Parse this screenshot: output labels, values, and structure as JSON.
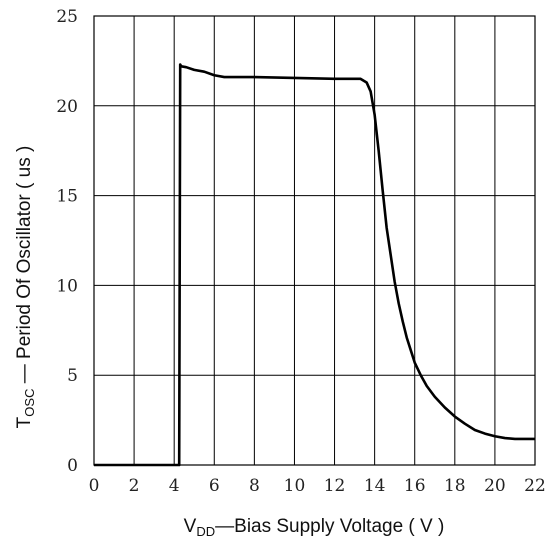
{
  "chart_data": {
    "type": "line",
    "title": "",
    "xlabel": {
      "main": "V",
      "sub": "DD",
      "rest": "—Bias Supply Voltage ( V )"
    },
    "ylabel": {
      "main": "T",
      "sub": "OSC",
      "rest": " — Period Of Oscillator ( us )"
    },
    "xlim": [
      0,
      22
    ],
    "ylim": [
      0,
      25
    ],
    "x_ticks": [
      0,
      2,
      4,
      6,
      8,
      10,
      12,
      14,
      16,
      18,
      20,
      22
    ],
    "y_ticks": [
      0,
      5,
      10,
      15,
      20,
      25
    ],
    "grid": true,
    "series": [
      {
        "x": [
          0,
          4.25,
          4.3,
          4.35,
          4.6,
          5.0,
          5.5,
          6.0,
          6.5,
          8,
          10,
          12,
          13.3,
          13.6,
          13.8,
          14.0,
          14.2,
          14.4,
          14.6,
          14.8,
          15.0,
          15.2,
          15.4,
          15.6,
          15.8,
          16.0,
          16.3,
          16.6,
          17.0,
          17.5,
          18.0,
          18.5,
          19.0,
          19.5,
          20.0,
          20.5,
          21.0,
          21.5,
          22.0
        ],
        "y": [
          0,
          0,
          22.3,
          22.2,
          22.15,
          22.0,
          21.9,
          21.7,
          21.6,
          21.6,
          21.55,
          21.5,
          21.5,
          21.3,
          20.8,
          19.5,
          17.5,
          15.3,
          13.2,
          11.7,
          10.2,
          9.0,
          8.0,
          7.1,
          6.4,
          5.7,
          5.0,
          4.4,
          3.8,
          3.2,
          2.7,
          2.3,
          1.95,
          1.75,
          1.6,
          1.5,
          1.45,
          1.45,
          1.45
        ],
        "color": "#000000"
      }
    ]
  }
}
